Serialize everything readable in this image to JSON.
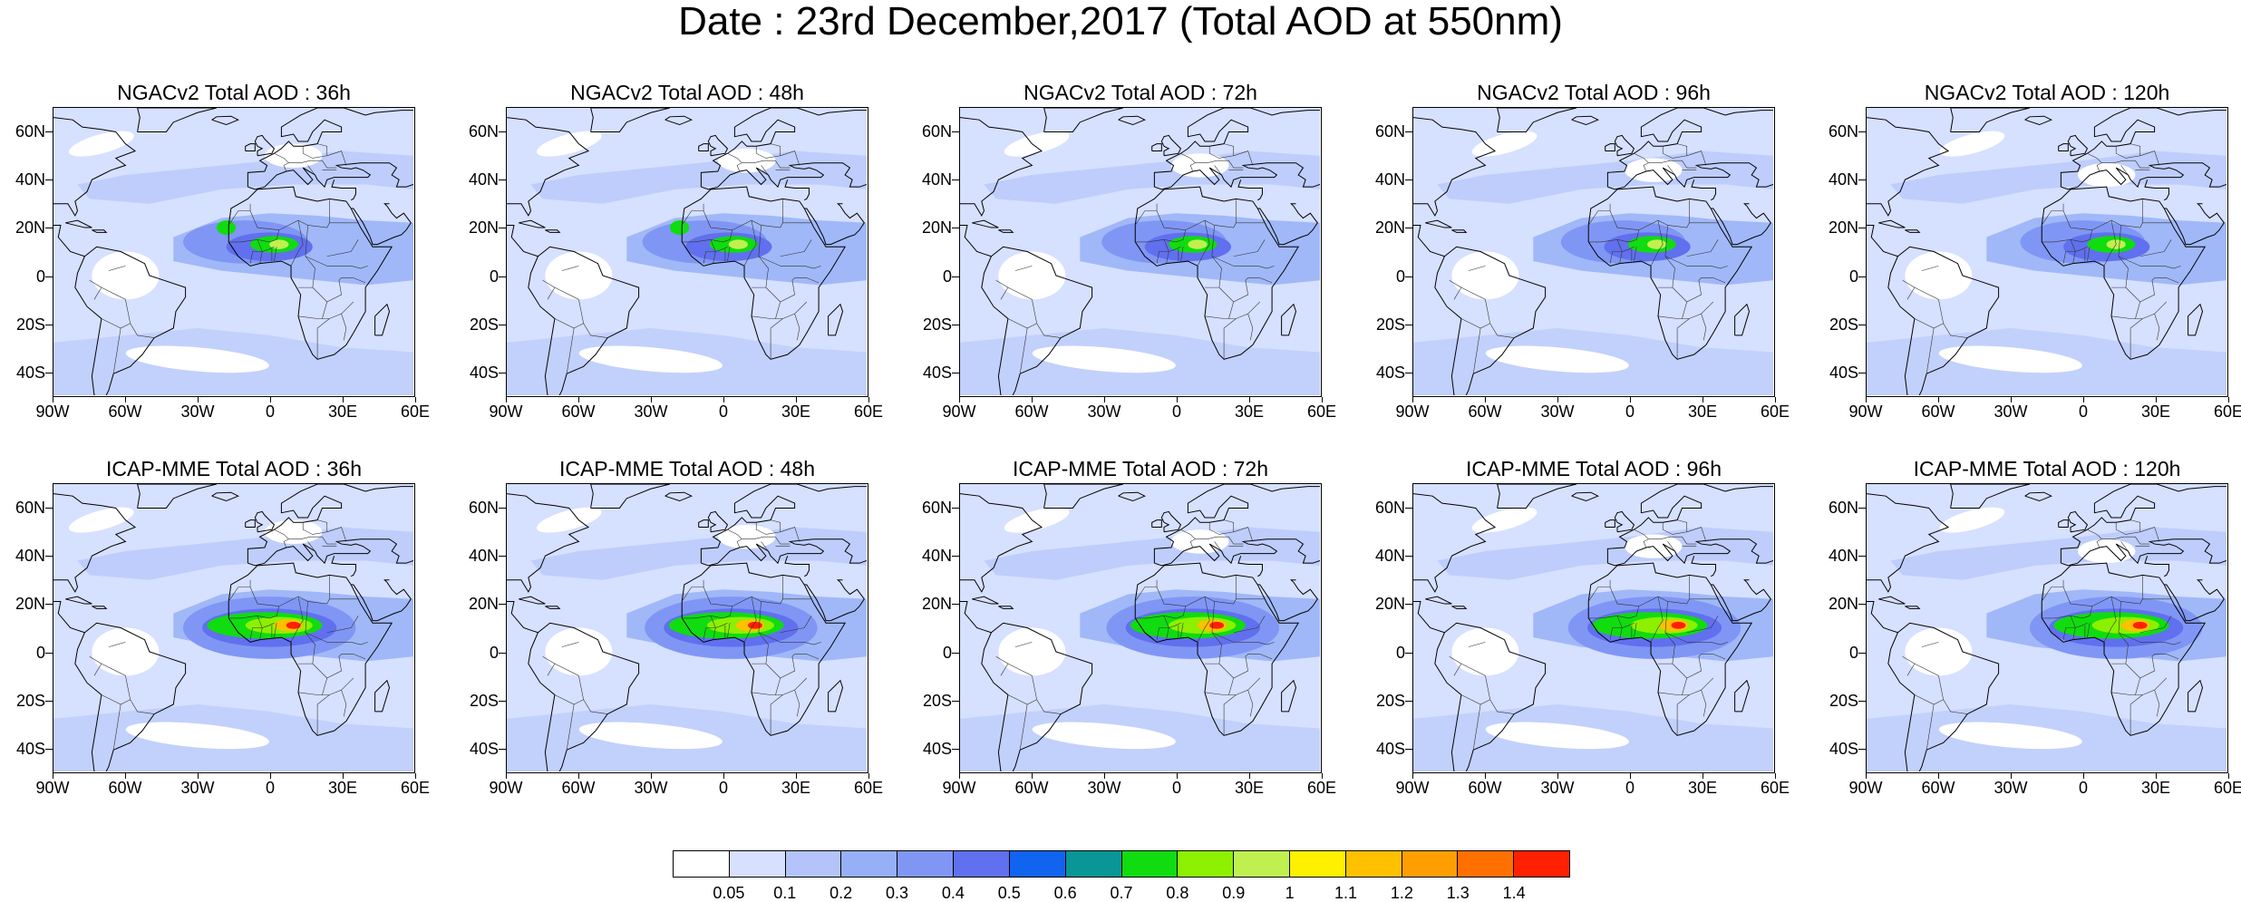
{
  "title": "Date : 23rd December,2017 (Total AOD at 550nm)",
  "rows": [
    {
      "model": "NGACv2",
      "panels": [
        {
          "title": "NGACv2 Total AOD : 36h"
        },
        {
          "title": "NGACv2 Total AOD : 48h"
        },
        {
          "title": "NGACv2 Total AOD : 72h"
        },
        {
          "title": "NGACv2 Total AOD : 96h"
        },
        {
          "title": "NGACv2 Total AOD : 120h"
        }
      ]
    },
    {
      "model": "ICAP-MME",
      "panels": [
        {
          "title": "ICAP-MME Total AOD : 36h"
        },
        {
          "title": "ICAP-MME Total AOD : 48h"
        },
        {
          "title": "ICAP-MME Total AOD : 72h"
        },
        {
          "title": "ICAP-MME Total AOD : 96h"
        },
        {
          "title": "ICAP-MME Total AOD : 120h"
        }
      ]
    }
  ],
  "map_extent": {
    "lon_min": -90,
    "lon_max": 60,
    "lat_min": -50,
    "lat_max": 70
  },
  "lat_ticks": [
    {
      "value": 60,
      "label": "60N"
    },
    {
      "value": 40,
      "label": "40N"
    },
    {
      "value": 20,
      "label": "20N"
    },
    {
      "value": 0,
      "label": "0"
    },
    {
      "value": -20,
      "label": "20S"
    },
    {
      "value": -40,
      "label": "40S"
    }
  ],
  "lon_ticks": [
    {
      "value": -90,
      "label": "90W"
    },
    {
      "value": -60,
      "label": "60W"
    },
    {
      "value": -30,
      "label": "30W"
    },
    {
      "value": 0,
      "label": "0"
    },
    {
      "value": 30,
      "label": "30E"
    },
    {
      "value": 60,
      "label": "60E"
    }
  ],
  "colorbar": {
    "colors": [
      "#ffffff",
      "#d6e0ff",
      "#b4c4fa",
      "#96b0f7",
      "#8096f5",
      "#6070ee",
      "#1064f0",
      "#089696",
      "#10dc10",
      "#8cf000",
      "#c0f050",
      "#fff000",
      "#ffc000",
      "#ff9e00",
      "#ff7000",
      "#ff2000"
    ],
    "labels": [
      "0.05",
      "0.1",
      "0.2",
      "0.3",
      "0.4",
      "0.5",
      "0.6",
      "0.7",
      "0.8",
      "0.9",
      "1",
      "1.1",
      "1.2",
      "1.3",
      "1.4"
    ]
  }
}
